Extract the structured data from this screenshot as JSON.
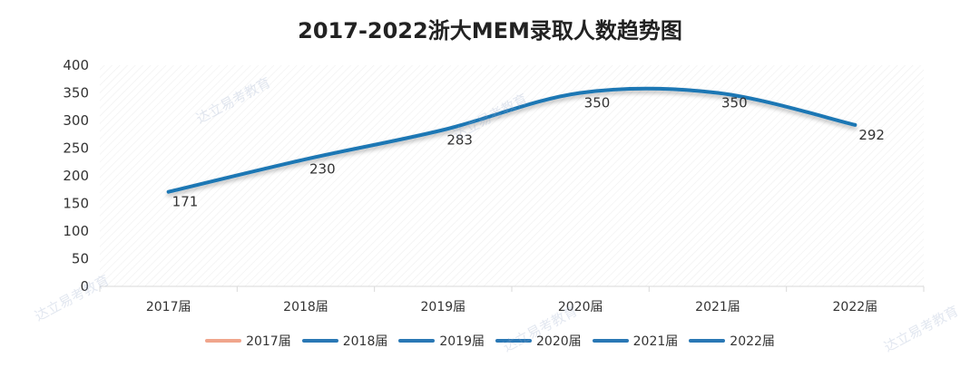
{
  "chart_data": {
    "type": "line",
    "title": "2017-2022浙大MEM录取人数趋势图",
    "categories": [
      "2017届",
      "2018届",
      "2019届",
      "2020届",
      "2021届",
      "2022届"
    ],
    "values": [
      171,
      230,
      283,
      350,
      350,
      292
    ],
    "ylim": [
      0,
      400
    ],
    "yticks": [
      "0",
      "50",
      "100",
      "150",
      "200",
      "250",
      "300",
      "350",
      "400"
    ],
    "xlabel": "",
    "ylabel": "",
    "grid": false,
    "line_color": "#1f77b4",
    "legend_position": "bottom",
    "legend": [
      {
        "name": "2017届",
        "color": "#f0a58c"
      },
      {
        "name": "2018届",
        "color": "#2a78b5"
      },
      {
        "name": "2019届",
        "color": "#2a78b5"
      },
      {
        "name": "2020届",
        "color": "#2a78b5"
      },
      {
        "name": "2021届",
        "color": "#2a78b5"
      },
      {
        "name": "2022届",
        "color": "#2a78b5"
      }
    ]
  },
  "watermark": "达立易考教育"
}
